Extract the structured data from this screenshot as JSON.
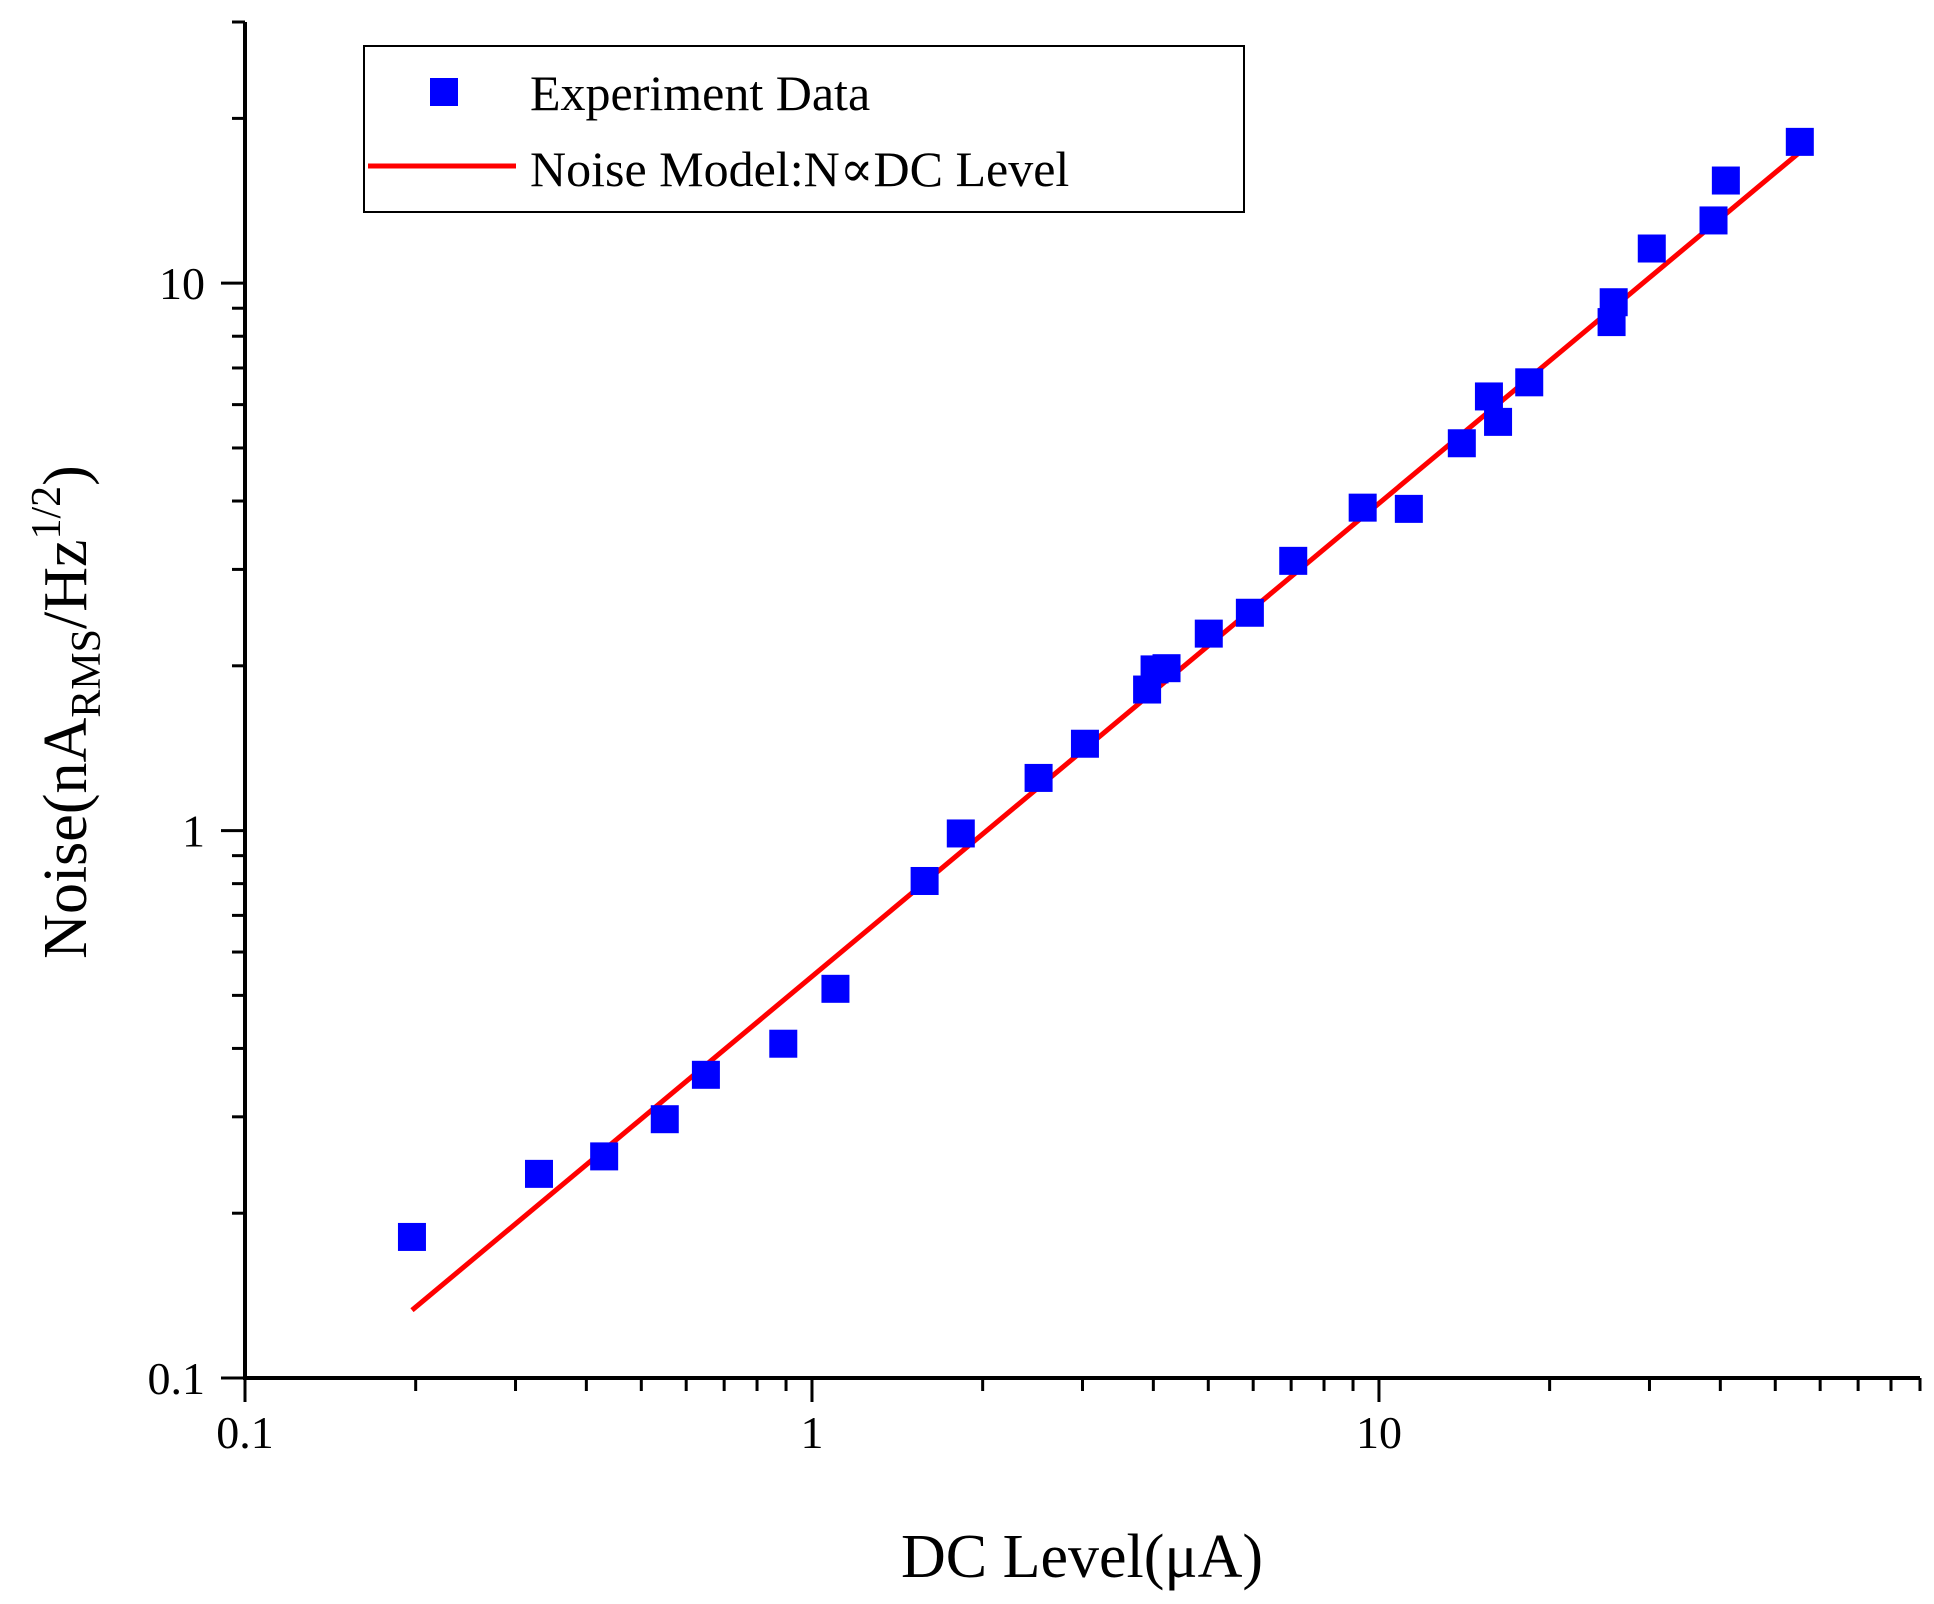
{
  "chart_data": {
    "type": "scatter",
    "title": "",
    "xlabel": "DC Level(μA)",
    "ylabel_parts": {
      "prefix": "Noise(nA",
      "sub": "RMS",
      "mid": "/Hz",
      "sup": "1/2",
      "suffix": ")"
    },
    "xscale": "log",
    "yscale": "log",
    "xlim": [
      0.1,
      90
    ],
    "ylim": [
      0.1,
      30
    ],
    "xticks": [
      {
        "value": 0.1,
        "label": "0.1"
      },
      {
        "value": 1,
        "label": "1"
      },
      {
        "value": 10,
        "label": "10"
      }
    ],
    "yticks": [
      {
        "value": 0.1,
        "label": "0.1"
      },
      {
        "value": 1,
        "label": "1"
      },
      {
        "value": 10,
        "label": "10"
      }
    ],
    "grid": false,
    "legend_position": "top-left",
    "series": [
      {
        "name": "Experiment Data",
        "kind": "scatter",
        "marker": "square",
        "color": "#0000ff",
        "x": [
          0.197,
          0.33,
          0.43,
          0.55,
          0.65,
          0.89,
          1.1,
          1.58,
          1.83,
          2.51,
          3.03,
          3.9,
          4.02,
          4.22,
          5.01,
          5.92,
          7.06,
          9.36,
          11.29,
          14.0,
          15.63,
          16.22,
          18.41,
          25.72,
          25.94,
          30.28,
          38.91,
          40.91,
          55.24
        ],
        "y": [
          0.181,
          0.236,
          0.254,
          0.297,
          0.358,
          0.408,
          0.514,
          0.809,
          0.988,
          1.248,
          1.441,
          1.81,
          1.97,
          1.98,
          2.29,
          2.5,
          3.11,
          3.89,
          3.87,
          5.1,
          6.21,
          5.58,
          6.59,
          8.49,
          9.23,
          11.57,
          13.02,
          15.4,
          18.12
        ]
      },
      {
        "name": "Noise Model:N∝DC Level",
        "kind": "line",
        "color": "#ff0000",
        "x": [
          0.197,
          55.24
        ],
        "y": [
          0.133,
          17.35
        ]
      }
    ]
  }
}
